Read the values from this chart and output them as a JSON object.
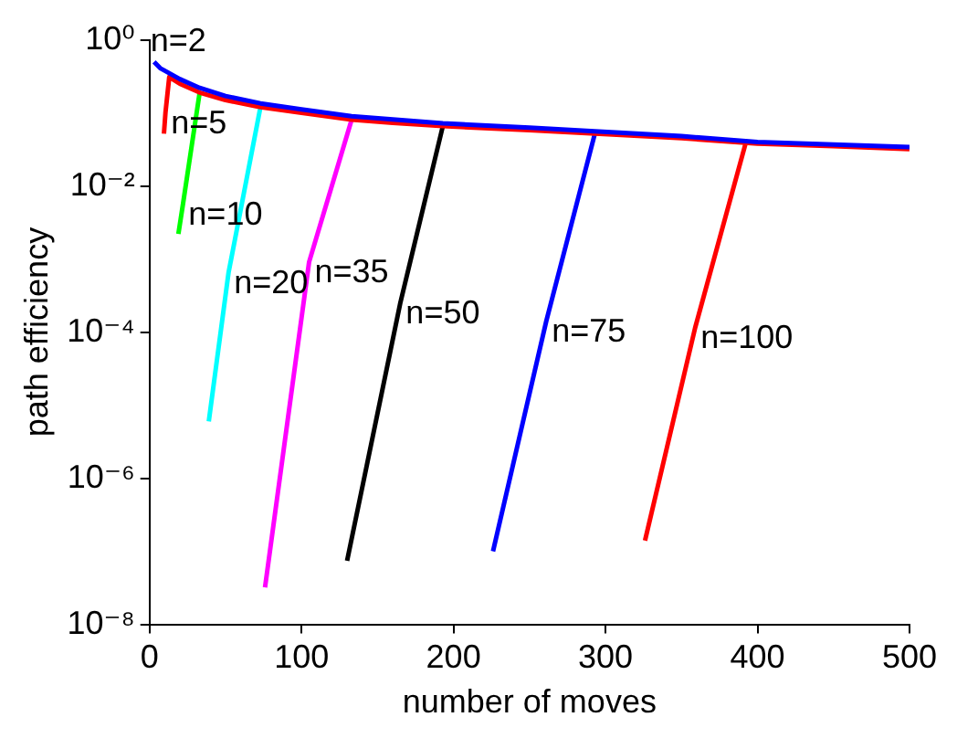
{
  "chart_data": {
    "type": "line",
    "xlabel": "number of moves",
    "ylabel": "path efficiency",
    "log": "y",
    "xlim": [
      0,
      500
    ],
    "xticks": [
      0,
      100,
      200,
      300,
      400,
      500
    ],
    "ylim": [
      1e-08,
      1
    ],
    "yticks": [
      {
        "value": 1,
        "label": "10⁰"
      },
      {
        "value": 0.01,
        "label": "10⁻²"
      },
      {
        "value": 0.0001,
        "label": "10⁻⁴"
      },
      {
        "value": 1e-06,
        "label": "10⁻⁶"
      },
      {
        "value": 1e-08,
        "label": "10⁻⁸"
      }
    ],
    "grid": false,
    "legend": false,
    "marker": "none",
    "line_style": "solid",
    "series": [
      {
        "name": "n=2",
        "color": "#0000ff",
        "x": [
          3,
          7,
          13,
          20,
          33,
          50,
          73,
          100,
          133,
          193,
          250,
          293,
          350,
          400,
          450,
          500
        ],
        "values": [
          0.5,
          0.41,
          0.35,
          0.29,
          0.22,
          0.17,
          0.135,
          0.112,
          0.09,
          0.072,
          0.063,
          0.056,
          0.048,
          0.04,
          0.037,
          0.034
        ]
      },
      {
        "name": "n=5",
        "color": "#ff0000",
        "x": [
          9.5,
          10.5,
          13,
          20,
          33,
          50,
          73,
          100,
          133,
          160,
          193,
          250,
          293,
          350,
          400,
          450,
          500
        ],
        "values": [
          0.052,
          0.1,
          0.31,
          0.25,
          0.19,
          0.15,
          0.12,
          0.1,
          0.081,
          0.073,
          0.066,
          0.058,
          0.052,
          0.045,
          0.038,
          0.035,
          0.032
        ]
      },
      {
        "name": "n=10",
        "color": "#00ff00",
        "x": [
          19,
          22,
          33
        ],
        "values": [
          0.0022,
          0.0056,
          0.19
        ]
      },
      {
        "name": "n=20",
        "color": "#00ffff",
        "x": [
          39,
          52,
          73
        ],
        "values": [
          6e-06,
          0.00065,
          0.12
        ]
      },
      {
        "name": "n=35",
        "color": "#ff00ff",
        "x": [
          76,
          105,
          133
        ],
        "values": [
          3.2e-08,
          0.00091,
          0.081
        ]
      },
      {
        "name": "n=50",
        "color": "#000000",
        "x": [
          130,
          165,
          193
        ],
        "values": [
          7.4e-08,
          0.00025,
          0.066
        ]
      },
      {
        "name": "n=75",
        "color": "#0000ff",
        "x": [
          226,
          261,
          293
        ],
        "values": [
          1e-07,
          0.00014,
          0.052
        ]
      },
      {
        "name": "n=100",
        "color": "#ff0000",
        "x": [
          326,
          359,
          392
        ],
        "values": [
          1.4e-07,
          0.000115,
          0.037
        ]
      }
    ]
  }
}
